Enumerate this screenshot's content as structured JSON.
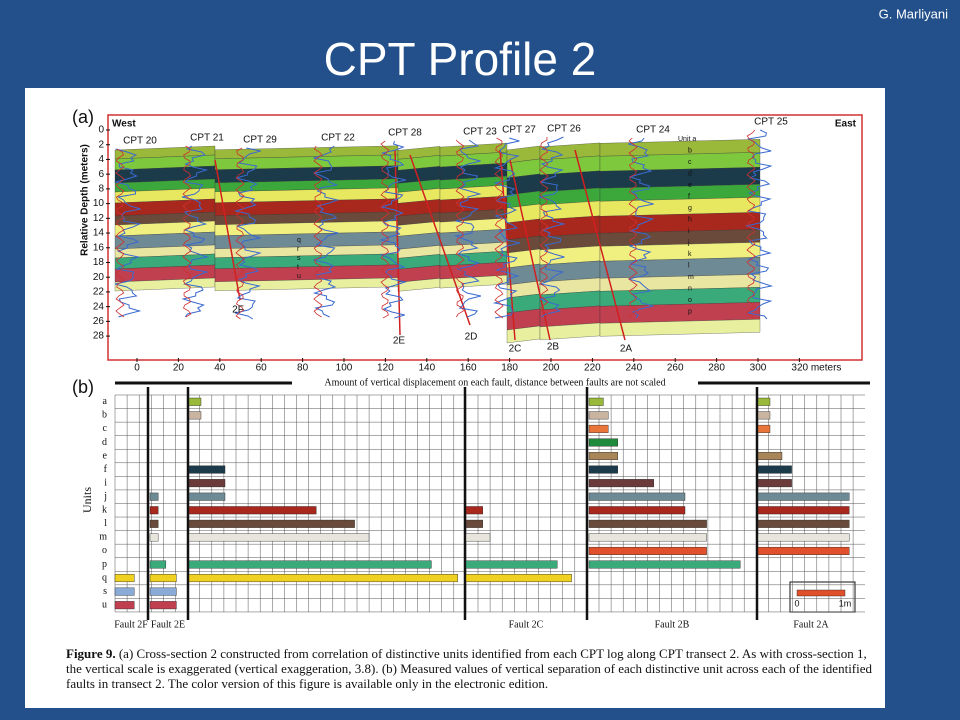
{
  "header": {
    "author": "G. Marliyani",
    "title": "CPT Profile 2"
  },
  "panel_a": {
    "label": "(a)",
    "west": "West",
    "east": "East",
    "y_axis_label": "Relative Depth (meters)",
    "depth_ticks": [
      0,
      2,
      4,
      6,
      8,
      10,
      12,
      14,
      16,
      18,
      20,
      22,
      24,
      26,
      28
    ],
    "x_ticks": [
      0,
      20,
      40,
      60,
      80,
      100,
      120,
      140,
      160,
      180,
      200,
      220,
      240,
      260,
      280,
      300,
      {
        "value": 320,
        "label": "320 meters"
      }
    ],
    "cpts": [
      "CPT 20",
      "CPT 21",
      "CPT 29",
      "CPT 22",
      "CPT 28",
      "CPT 23",
      "CPT 27",
      "CPT 26",
      "CPT 24",
      "CPT 25"
    ],
    "faults": [
      "2F",
      "2E",
      "2D",
      "2C",
      "2B",
      "2A"
    ],
    "units_right": [
      "Unit a",
      "b",
      "c",
      "d",
      "e",
      "f",
      "g",
      "h",
      "i",
      "j",
      "k",
      "l",
      "m",
      "n",
      "o",
      "p"
    ],
    "units_left": [
      "q",
      "r",
      "s",
      "t",
      "u"
    ]
  },
  "panel_b": {
    "label": "(b)",
    "banner": "Amount of vertical displacement on each fault, distance between faults are not scaled",
    "axis_label": "Units",
    "units": [
      "a",
      "b",
      "c",
      "d",
      "e",
      "f",
      "i",
      "j",
      "k",
      "l",
      "m",
      "o",
      "p",
      "q",
      "s",
      "u"
    ],
    "unit_colors": [
      "#9ab83a",
      "#c8b4a0",
      "#e8763a",
      "#1f8a3c",
      "#a8865a",
      "#1b3a4a",
      "#6b3a3a",
      "#6e8a94",
      "#a8281e",
      "#6a4a3a",
      "#e8e6dc",
      "#e0502a",
      "#3aaa7a",
      "#f0d020",
      "#8aaad8",
      "#c04050"
    ],
    "columns": [
      {
        "name": "Fault 2F",
        "values": [
          null,
          null,
          null,
          null,
          null,
          null,
          null,
          null,
          null,
          null,
          null,
          null,
          null,
          0.4,
          0.4,
          0.4
        ]
      },
      {
        "name": "Fault 2E",
        "values": [
          null,
          null,
          null,
          null,
          null,
          null,
          null,
          0.17,
          0.17,
          0.17,
          0.17,
          null,
          0.33,
          0.55,
          0.55,
          0.55
        ]
      },
      {
        "values": [
          0.25,
          0.25,
          null,
          null,
          null,
          0.75,
          0.75,
          0.75,
          2.65,
          3.45,
          3.75,
          null,
          5.05,
          5.6,
          null,
          null
        ]
      },
      {
        "name": "Fault 2C",
        "values": [
          null,
          null,
          null,
          null,
          null,
          null,
          null,
          null,
          0.35,
          0.35,
          0.5,
          null,
          1.9,
          2.2,
          null,
          null
        ]
      },
      {
        "name": "Fault 2B",
        "values": [
          0.3,
          0.4,
          0.4,
          0.6,
          0.6,
          0.6,
          1.35,
          2.0,
          2.0,
          2.45,
          2.45,
          2.45,
          3.15,
          null,
          null,
          null
        ]
      },
      {
        "name": "Fault 2A",
        "values": [
          0.25,
          0.25,
          0.25,
          null,
          0.5,
          0.7,
          0.7,
          1.9,
          1.9,
          1.9,
          1.9,
          1.9,
          null,
          null,
          null,
          null
        ]
      }
    ],
    "scale_ticks": [
      0,
      {
        "value": 1,
        "label": "1m"
      }
    ]
  },
  "caption": {
    "label": "Figure 9.",
    "text": "(a) Cross-section 2 constructed from correlation of distinctive units identified from each CPT log along CPT transect 2. As with cross-section 1, the vertical scale is exaggerated (vertical exaggeration, 3.8). (b) Measured values of vertical separation of each distinctive unit across each of the identified faults in transect 2. The color version of this figure is available only in the electronic edition."
  }
}
